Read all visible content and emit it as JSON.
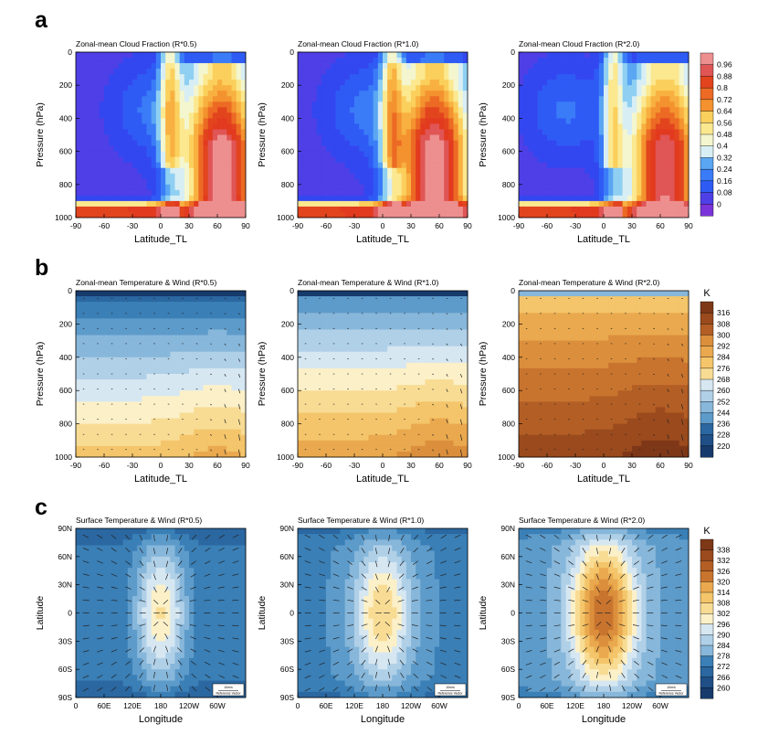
{
  "colors": {
    "cloud_scale": [
      "#7a34d9",
      "#4f3fe6",
      "#3347f0",
      "#2f5bf5",
      "#3a7cf7",
      "#5aa6f3",
      "#8fd0f2",
      "#d8eef5",
      "#f3f6ce",
      "#fbe88f",
      "#fbcf5c",
      "#f8b040",
      "#f3922e",
      "#ec6a24",
      "#e2441e",
      "#e23a1f",
      "#e05555",
      "#ed8f8f"
    ],
    "temp_scale": [
      "#163a6b",
      "#1f4f86",
      "#2b67a0",
      "#3a7fb6",
      "#5d9bca",
      "#87b7da",
      "#b0d0e8",
      "#d6e7f2",
      "#fbf0c8",
      "#f8dc94",
      "#f4c56a",
      "#eaa94e",
      "#db8f3c",
      "#c9742e",
      "#b35e25",
      "#9a4a1d",
      "#7e3818"
    ],
    "vector": "#222222",
    "axis": "#000000"
  },
  "chart_data": [
    {
      "id": "a1",
      "row": "a",
      "type": "heatmap",
      "title": "Zonal-mean Cloud Fraction (R*0.5)",
      "xlabel": "Latitude_TL",
      "ylabel": "Pressure (hPa)",
      "x_ticks": [
        "-90",
        "-60",
        "-30",
        "0",
        "30",
        "60",
        "90"
      ],
      "y_ticks": [
        "0",
        "200",
        "400",
        "600",
        "800",
        "1000"
      ],
      "xlim": [
        -90,
        90
      ],
      "ylim": [
        1000,
        0
      ],
      "field": "cloud",
      "cloud_peak": 0.9,
      "cloud_peak_lat": 65,
      "cloud_low_lat": -10
    },
    {
      "id": "a2",
      "row": "a",
      "type": "heatmap",
      "title": "Zonal-mean Cloud Fraction (R*1.0)",
      "xlabel": "Latitude_TL",
      "ylabel": "Pressure (hPa)",
      "x_ticks": [
        "-90",
        "-60",
        "-30",
        "0",
        "30",
        "60",
        "90"
      ],
      "y_ticks": [
        "0",
        "200",
        "400",
        "600",
        "800",
        "1000"
      ],
      "xlim": [
        -90,
        90
      ],
      "ylim": [
        1000,
        0
      ],
      "field": "cloud",
      "cloud_peak": 0.92,
      "cloud_peak_lat": 55,
      "cloud_low_lat": -20
    },
    {
      "id": "a3",
      "row": "a",
      "type": "heatmap",
      "title": "Zonal-mean Cloud Fraction (R*2.0)",
      "xlabel": "Latitude_TL",
      "ylabel": "Pressure (hPa)",
      "x_ticks": [
        "-90",
        "-60",
        "-30",
        "0",
        "30",
        "60",
        "90"
      ],
      "y_ticks": [
        "0",
        "200",
        "400",
        "600",
        "800",
        "1000"
      ],
      "xlim": [
        -90,
        90
      ],
      "ylim": [
        1000,
        0
      ],
      "field": "cloud",
      "cloud_peak": 0.85,
      "cloud_peak_lat": 65,
      "cloud_low_lat": -40
    },
    {
      "id": "b1",
      "row": "b",
      "type": "heatmap",
      "title": "Zonal-mean Temperature & Wind (R*0.5)",
      "xlabel": "Latitude_TL",
      "ylabel": "Pressure (hPa)",
      "x_ticks": [
        "-90",
        "-60",
        "-30",
        "0",
        "30",
        "60",
        "90"
      ],
      "y_ticks": [
        "0",
        "200",
        "400",
        "600",
        "800",
        "1000"
      ],
      "xlim": [
        -90,
        90
      ],
      "ylim": [
        1000,
        0
      ],
      "field": "ztemp",
      "t_surface": 284,
      "t_top": 232
    },
    {
      "id": "b2",
      "row": "b",
      "type": "heatmap",
      "title": "Zonal-mean Temperature & Wind (R*1.0)",
      "xlabel": "Latitude_TL",
      "ylabel": "Pressure (hPa)",
      "x_ticks": [
        "-90",
        "-60",
        "-30",
        "0",
        "30",
        "60",
        "90"
      ],
      "y_ticks": [
        "0",
        "200",
        "400",
        "600",
        "800",
        "1000"
      ],
      "xlim": [
        -90,
        90
      ],
      "ylim": [
        1000,
        0
      ],
      "field": "ztemp",
      "t_surface": 292,
      "t_top": 240
    },
    {
      "id": "b3",
      "row": "b",
      "type": "heatmap",
      "title": "Zonal-mean Temperature & Wind (R*2.0)",
      "xlabel": "Latitude_TL",
      "ylabel": "Pressure (hPa)",
      "x_ticks": [
        "-90",
        "-60",
        "-30",
        "0",
        "30",
        "60",
        "90"
      ],
      "y_ticks": [
        "0",
        "200",
        "400",
        "600",
        "800",
        "1000"
      ],
      "xlim": [
        -90,
        90
      ],
      "ylim": [
        1000,
        0
      ],
      "field": "ztemp",
      "t_surface": 316,
      "t_top": 280
    },
    {
      "id": "c1",
      "row": "c",
      "type": "heatmap",
      "title": "Surface Temperature & Wind (R*0.5)",
      "xlabel": "Longitude",
      "ylabel": "Latitude",
      "x_ticks": [
        "0",
        "60E",
        "120E",
        "180",
        "120W",
        "60W"
      ],
      "y_ticks": [
        "90N",
        "60N",
        "30N",
        "0",
        "30S",
        "60S",
        "90S"
      ],
      "xlim": [
        0,
        360
      ],
      "ylim": [
        -90,
        90
      ],
      "field": "stemp",
      "t_max": 302,
      "t_min": 272,
      "hot_width": 38,
      "reference_vector": {
        "speed": "10m/s",
        "label": "Reference Vector"
      }
    },
    {
      "id": "c2",
      "row": "c",
      "type": "heatmap",
      "title": "Surface Temperature & Wind (R*1.0)",
      "xlabel": "Longitude",
      "ylabel": "Latitude",
      "x_ticks": [
        "0",
        "60E",
        "120E",
        "180",
        "120W",
        "60W"
      ],
      "y_ticks": [
        "90N",
        "60N",
        "30N",
        "0",
        "30S",
        "60S",
        "90S"
      ],
      "xlim": [
        0,
        360
      ],
      "ylim": [
        -90,
        90
      ],
      "field": "stemp",
      "t_max": 306,
      "t_min": 276,
      "hot_width": 44,
      "reference_vector": {
        "speed": "10m/s",
        "label": "Reference Vector"
      }
    },
    {
      "id": "c3",
      "row": "c",
      "type": "heatmap",
      "title": "Surface Temperature & Wind (R*2.0)",
      "xlabel": "Longitude",
      "ylabel": "Latitude",
      "x_ticks": [
        "0",
        "60E",
        "120E",
        "180",
        "120W",
        "60W"
      ],
      "y_ticks": [
        "90N",
        "60N",
        "30N",
        "0",
        "30S",
        "60S",
        "90S"
      ],
      "xlim": [
        0,
        360
      ],
      "ylim": [
        -90,
        90
      ],
      "field": "stemp",
      "t_max": 326,
      "t_min": 280,
      "hot_width": 48,
      "reference_vector": {
        "speed": "10m/s",
        "label": "Reference Vector"
      }
    }
  ],
  "row_labels": {
    "a": "a",
    "b": "b",
    "c": "c"
  },
  "colorbars": [
    {
      "row": "a",
      "unit": "",
      "labels": [
        "0.96",
        "0.88",
        "0.8",
        "0.72",
        "0.64",
        "0.56",
        "0.48",
        "0.4",
        "0.32",
        "0.24",
        "0.16",
        "0.08",
        "0"
      ],
      "palette": "cloud_scale"
    },
    {
      "row": "b",
      "unit": "K",
      "labels": [
        "316",
        "308",
        "300",
        "292",
        "284",
        "276",
        "268",
        "260",
        "252",
        "244",
        "236",
        "228",
        "220"
      ],
      "palette": "temp_scale"
    },
    {
      "row": "c",
      "unit": "K",
      "labels": [
        "338",
        "332",
        "326",
        "320",
        "314",
        "308",
        "302",
        "296",
        "290",
        "284",
        "278",
        "272",
        "266",
        "260"
      ],
      "palette": "temp_scale"
    }
  ]
}
